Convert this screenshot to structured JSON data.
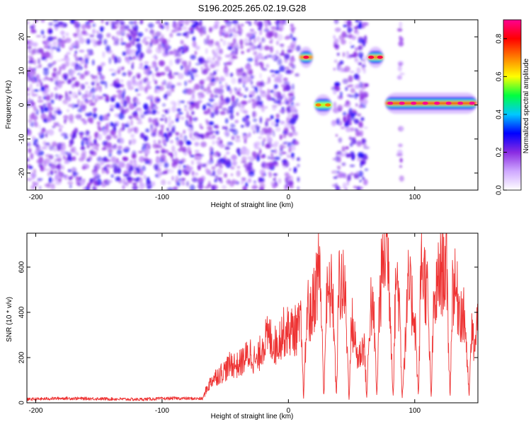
{
  "figure": {
    "title": "S196.2025.265.02.19.G28"
  },
  "chart_data": [
    {
      "type": "heatmap",
      "xlabel": "Height of straight line (km)",
      "ylabel": "Frequency (Hz)",
      "xlim": [
        -207,
        150
      ],
      "ylim": [
        -25,
        25
      ],
      "xticks": [
        -200,
        -100,
        0,
        100
      ],
      "yticks": [
        -20,
        -10,
        0,
        10,
        20
      ],
      "colorbar": {
        "label": "Normalized spectral amplitude",
        "range": [
          0,
          0.9
        ],
        "ticks": [
          0.0,
          0.2,
          0.4,
          0.6,
          0.8
        ],
        "colormap": [
          "#ffffff",
          "#cfa8ff",
          "#8a2be2",
          "#0000ff",
          "#00c8ff",
          "#00ff40",
          "#ffff00",
          "#ff8000",
          "#ff0000",
          "#ff0090"
        ]
      },
      "features": [
        {
          "x": [
            8,
            20
          ],
          "freq": 14,
          "peak": 0.85
        },
        {
          "x": [
            20,
            35
          ],
          "freq": 0,
          "peak": 0.7
        },
        {
          "x": [
            62,
            76
          ],
          "freq": 14,
          "peak": 0.85
        },
        {
          "x": [
            76,
            150
          ],
          "freq": 0.5,
          "peak": 0.9
        }
      ],
      "noise_regions": [
        {
          "x": [
            -207,
            8
          ],
          "freq": [
            -25,
            25
          ],
          "level": 0.12
        },
        {
          "x": [
            36,
            62
          ],
          "freq": [
            -25,
            25
          ],
          "level": 0.12
        },
        {
          "x": [
            88,
            90
          ],
          "freq": [
            -25,
            25
          ],
          "level": 0.08
        }
      ]
    },
    {
      "type": "line",
      "xlabel": "Height of straight line (km)",
      "ylabel": "SNR (10 * v/v)",
      "xlim": [
        -207,
        150
      ],
      "ylim": [
        0,
        750
      ],
      "xticks": [
        -200,
        -100,
        0,
        100
      ],
      "yticks": [
        0,
        200,
        400,
        600
      ],
      "color": "#ee3333",
      "x": [
        -207,
        -180,
        -150,
        -120,
        -90,
        -68,
        -65,
        -60,
        -55,
        -50,
        -45,
        -40,
        -35,
        -30,
        -25,
        -20,
        -15,
        -10,
        -5,
        0,
        5,
        10,
        12,
        15,
        18,
        20,
        25,
        28,
        30,
        35,
        38,
        40,
        45,
        48,
        50,
        55,
        58,
        60,
        62,
        65,
        68,
        70,
        72,
        75,
        78,
        80,
        83,
        85,
        88,
        90,
        95,
        100,
        103,
        105,
        110,
        113,
        115,
        120,
        125,
        128,
        130,
        135,
        140,
        143,
        145,
        148,
        150
      ],
      "y": [
        15,
        20,
        18,
        15,
        20,
        18,
        60,
        110,
        130,
        150,
        180,
        170,
        200,
        230,
        180,
        280,
        300,
        260,
        320,
        330,
        330,
        350,
        20,
        440,
        390,
        480,
        640,
        20,
        460,
        520,
        20,
        560,
        500,
        20,
        380,
        200,
        240,
        270,
        20,
        470,
        350,
        20,
        450,
        660,
        740,
        540,
        20,
        600,
        460,
        20,
        530,
        400,
        20,
        660,
        500,
        20,
        420,
        600,
        640,
        20,
        560,
        450,
        370,
        20,
        320,
        250,
        400
      ]
    }
  ]
}
